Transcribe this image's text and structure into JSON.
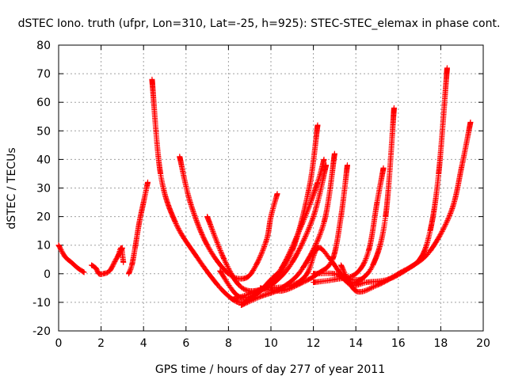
{
  "chart_data": {
    "type": "scatter",
    "title": "dSTEC Iono. truth (ufpr, Lon=310, Lat=-25, h=925): STEC-STEC_elemax in phase cont.",
    "xlabel": "GPS time / hours of day 277 of year 2011",
    "ylabel": "dSTEC  / TECUs",
    "xlim": [
      0,
      20
    ],
    "ylim": [
      -20,
      80
    ],
    "xticks": [
      0,
      2,
      4,
      6,
      8,
      10,
      12,
      14,
      16,
      18,
      20
    ],
    "yticks": [
      -20,
      -10,
      0,
      10,
      20,
      30,
      40,
      50,
      60,
      70,
      80
    ],
    "grid": true,
    "marker": "+",
    "color": "#ff0000",
    "series": [
      {
        "x": [
          0.0,
          0.3,
          0.6,
          0.9,
          1.2
        ],
        "y": [
          10,
          6,
          4,
          2,
          0.5
        ]
      },
      {
        "x": [
          1.55,
          1.75,
          1.9,
          2.1,
          2.4,
          2.7,
          3.0
        ],
        "y": [
          3,
          2,
          0,
          0,
          1,
          5,
          9
        ]
      },
      {
        "x": [
          2.8,
          2.95,
          3.05
        ],
        "y": [
          6,
          9,
          4
        ]
      },
      {
        "x": [
          3.3,
          3.45,
          3.6,
          3.8,
          4.0,
          4.2
        ],
        "y": [
          0,
          3,
          9,
          18,
          25,
          32
        ]
      },
      {
        "x": [
          4.4,
          4.8,
          5.5,
          6.5,
          7.5,
          8.2,
          8.6,
          9.0,
          9.5,
          10.0,
          10.3
        ],
        "y": [
          68,
          35,
          18,
          6,
          -4,
          -9,
          -10,
          -9,
          -6,
          -2,
          0
        ]
      },
      {
        "x": [
          5.7,
          6.2,
          7.0,
          8.0,
          8.8,
          9.3,
          9.8,
          10.0,
          10.3
        ],
        "y": [
          41,
          25,
          10,
          0,
          -1.5,
          3,
          12,
          20,
          28
        ]
      },
      {
        "x": [
          7.0,
          7.8,
          8.5,
          9.2,
          10.0,
          11.0,
          11.8,
          12.2
        ],
        "y": [
          20,
          5,
          -4,
          -6,
          -3,
          8,
          30,
          52
        ]
      },
      {
        "x": [
          7.6,
          8.5,
          9.5,
          10.5,
          11.5,
          12.2,
          12.5
        ],
        "y": [
          1,
          -8,
          -6,
          2,
          18,
          32,
          40
        ]
      },
      {
        "x": [
          8.2,
          9.0,
          10.0,
          11.0,
          12.0,
          12.6
        ],
        "y": [
          -9,
          -7,
          -4,
          4,
          20,
          38
        ]
      },
      {
        "x": [
          8.6,
          9.5,
          10.5,
          11.5,
          12.5,
          13.0
        ],
        "y": [
          -11,
          -8,
          -5,
          2,
          18,
          42
        ]
      },
      {
        "x": [
          9.5,
          10.5,
          11.5,
          12.2,
          12.9,
          13.3,
          13.6
        ],
        "y": [
          -5,
          -6,
          -3,
          0,
          5,
          20,
          38
        ]
      },
      {
        "x": [
          10.0,
          11.0,
          11.7,
          12.2,
          12.8,
          13.3,
          13.8,
          14.3
        ],
        "y": [
          -5,
          -4,
          0,
          9,
          5,
          0,
          -2,
          -2
        ]
      },
      {
        "x": [
          12.0,
          13.0,
          14.0,
          14.6,
          15.0,
          15.3
        ],
        "y": [
          -3,
          -2,
          0,
          8,
          25,
          37
        ]
      },
      {
        "x": [
          12.0,
          13.0,
          13.5,
          14.0,
          14.8,
          15.4,
          15.8
        ],
        "y": [
          0,
          0,
          -2,
          -3,
          3,
          20,
          58
        ]
      },
      {
        "x": [
          13.3,
          14.0,
          15.0,
          16.0,
          17.0,
          17.5,
          17.9,
          18.3
        ],
        "y": [
          3,
          -6,
          -4,
          0,
          5,
          15,
          35,
          72
        ]
      },
      {
        "x": [
          13.2,
          13.8,
          14.5,
          15.5,
          16.5,
          17.5,
          18.5,
          19.0,
          19.4
        ],
        "y": [
          0,
          -4,
          -3,
          -2,
          2,
          8,
          22,
          38,
          53
        ]
      }
    ]
  }
}
